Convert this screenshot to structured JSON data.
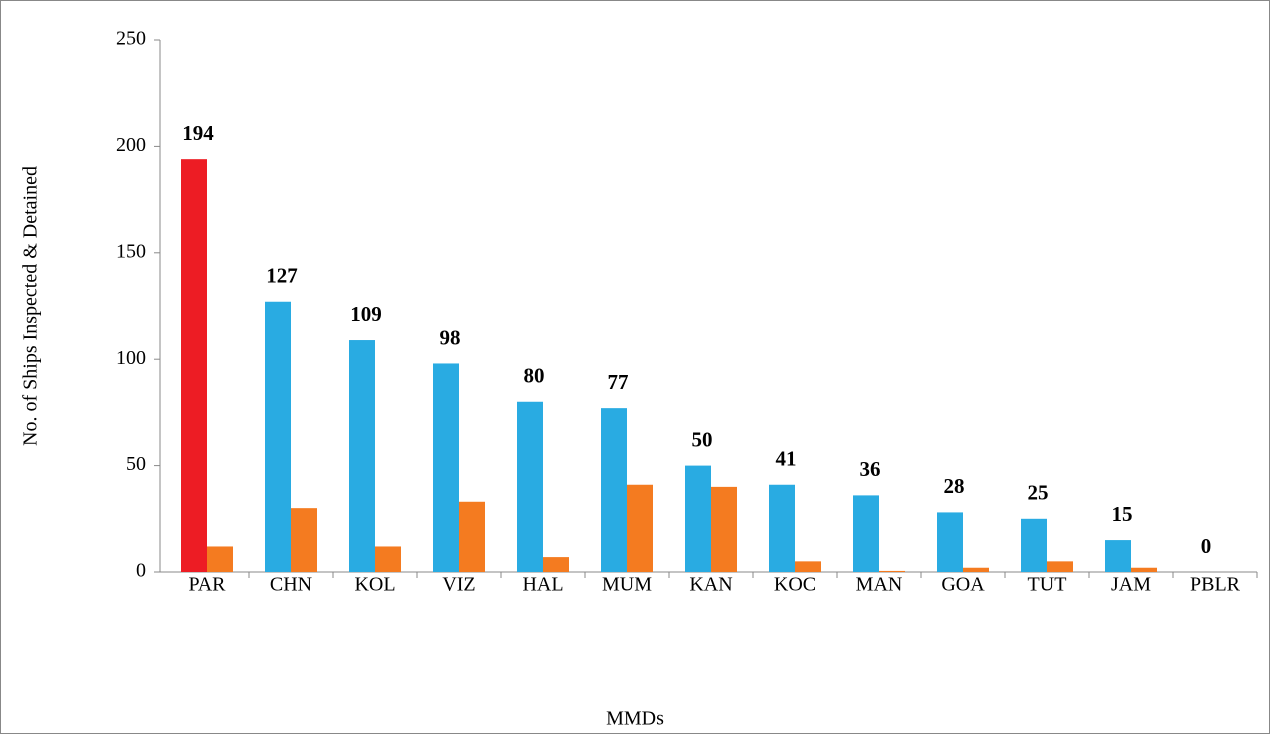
{
  "chart_data": {
    "type": "bar",
    "x_label": "MMDs",
    "y_label": "No. of Ships Inspected & Detained",
    "categories": [
      "PAR",
      "CHN",
      "KOL",
      "VIZ",
      "HAL",
      "MUM",
      "KAN",
      "KOC",
      "MAN",
      "GOA",
      "TUT",
      "JAM",
      "PBLR"
    ],
    "series": [
      {
        "color": "#29abe2",
        "colors": [
          "#ed1c24",
          "#29abe2",
          "#29abe2",
          "#29abe2",
          "#29abe2",
          "#29abe2",
          "#29abe2",
          "#29abe2",
          "#29abe2",
          "#29abe2",
          "#29abe2",
          "#29abe2",
          "#29abe2"
        ],
        "values": [
          194,
          127,
          109,
          98,
          80,
          77,
          50,
          41,
          36,
          28,
          25,
          15,
          0
        ],
        "show_labels": true
      },
      {
        "color": "#f47b20",
        "values": [
          12,
          30,
          12,
          33,
          7,
          41,
          40,
          5,
          0.5,
          2,
          5,
          2,
          0
        ],
        "show_labels": false
      }
    ],
    "ylim": [
      0,
      250
    ],
    "yticks": [
      0,
      50,
      100,
      150,
      200,
      250
    ],
    "grid": false
  }
}
